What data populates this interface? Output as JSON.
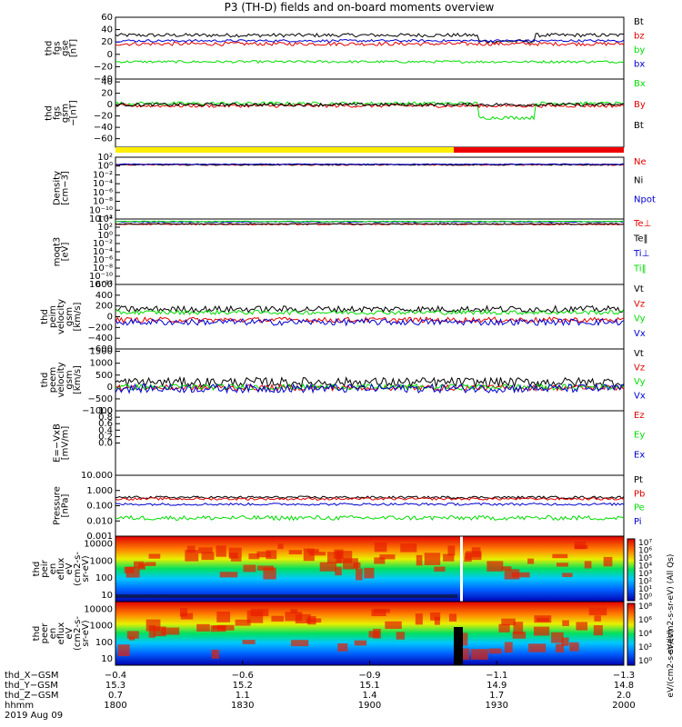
{
  "title": "P3 (TH-D) fields and on-board moments overview",
  "colors": {
    "black": "#000000",
    "red": "#e00000",
    "green": "#00dd00",
    "blue": "#0000d0",
    "yellow": "#ffee00",
    "barred": "#ee0000"
  },
  "chart_data": [
    {
      "type": "line",
      "panel": "fgs_gse",
      "ylabel": [
        "thd",
        "fgs",
        "gse",
        "[nT]"
      ],
      "ylim": [
        -40,
        60
      ],
      "yticks": [
        "60",
        "40",
        "20",
        "0",
        "−20",
        "−40"
      ],
      "yvals": [
        60,
        40,
        20,
        0,
        -20,
        -40
      ],
      "series": [
        {
          "name": "Bt",
          "color": "black",
          "base": 31,
          "noise": 3
        },
        {
          "name": "bz",
          "color": "red",
          "base": 17,
          "noise": 3
        },
        {
          "name": "by",
          "color": "green",
          "base": -12,
          "noise": 2
        },
        {
          "name": "bx",
          "color": "blue",
          "base": 22,
          "noise": 2
        }
      ]
    },
    {
      "type": "line",
      "panel": "fgs_gsm",
      "ylabel": [
        "thd",
        "fgs",
        "gsm",
        "−[nT]"
      ],
      "ylim": [
        -75,
        45
      ],
      "yticks": [
        "40",
        "20",
        "0",
        "−20",
        "−40",
        "−60"
      ],
      "yvals": [
        40,
        20,
        0,
        -20,
        -40,
        -60
      ],
      "series": [
        {
          "name": "Bx",
          "color": "green",
          "base": 2,
          "noise": 3
        },
        {
          "name": "By",
          "color": "red",
          "base": -2,
          "noise": 3
        },
        {
          "name": "Bt",
          "color": "black",
          "base": 0,
          "noise": 3
        }
      ]
    },
    {
      "type": "line",
      "panel": "density",
      "ylabel": [
        "Density",
        "[cm−3]"
      ],
      "log": true,
      "ylim": [
        -12,
        2
      ],
      "yticks": [
        "10²",
        "10⁰",
        "10⁻²",
        "10⁻⁴",
        "10⁻⁶",
        "10⁻⁸",
        "10⁻¹⁰",
        "10⁻¹²"
      ],
      "yvals": [
        2,
        0,
        -2,
        -4,
        -6,
        -8,
        -10,
        -12
      ],
      "series": [
        {
          "name": "Ne",
          "color": "red",
          "base": 0.3,
          "noise": 0.15
        },
        {
          "name": "Ni",
          "color": "black",
          "base": 0.3,
          "noise": 0.15
        },
        {
          "name": "Npot",
          "color": "blue",
          "base": 0.4,
          "noise": 0.1
        }
      ]
    },
    {
      "type": "line",
      "panel": "temperature",
      "ylabel": [
        "moqt3",
        "[eV]"
      ],
      "log": true,
      "ylim": [
        -12,
        4
      ],
      "yticks": [
        "10⁴",
        "10²",
        "10⁰",
        "10⁻²",
        "10⁻⁴",
        "10⁻⁶",
        "10⁻⁸",
        "10⁻¹⁰",
        "10⁻¹²"
      ],
      "yvals": [
        4,
        2,
        0,
        -2,
        -4,
        -6,
        -8,
        -10,
        -12
      ],
      "series": [
        {
          "name": "Te⊥",
          "color": "red",
          "base": 2.7,
          "noise": 0.15
        },
        {
          "name": "Te‖",
          "color": "black",
          "base": 2.8,
          "noise": 0.15
        },
        {
          "name": "Ti⊥",
          "color": "blue",
          "base": 3.3,
          "noise": 0.1
        },
        {
          "name": "Ti‖",
          "color": "green",
          "base": 3.4,
          "noise": 0.1
        }
      ]
    },
    {
      "type": "line",
      "panel": "peim_velocity",
      "ylabel": [
        "thd",
        "peim",
        "velocity",
        "gsm",
        "[km/s]"
      ],
      "ylim": [
        -600,
        600
      ],
      "yticks": [
        "600",
        "400",
        "200",
        "0",
        "−200",
        "−400",
        "−600"
      ],
      "yvals": [
        600,
        400,
        200,
        0,
        -200,
        -400,
        -600
      ],
      "series": [
        {
          "name": "Vt",
          "color": "black",
          "base": 140,
          "noise": 60
        },
        {
          "name": "Vz",
          "color": "red",
          "base": -60,
          "noise": 50
        },
        {
          "name": "Vy",
          "color": "green",
          "base": 80,
          "noise": 40
        },
        {
          "name": "Vx",
          "color": "blue",
          "base": -100,
          "noise": 60
        }
      ]
    },
    {
      "type": "line",
      "panel": "peem_velocity",
      "ylabel": [
        "thd",
        "peem",
        "velocity",
        "gsm",
        "[km/s]"
      ],
      "ylim": [
        -1000,
        1600
      ],
      "yticks": [
        "1500",
        "1000",
        "500",
        "0",
        "−500",
        "−1000"
      ],
      "yvals": [
        1500,
        1000,
        500,
        0,
        -500,
        -1000
      ],
      "series": [
        {
          "name": "Vt",
          "color": "black",
          "base": 200,
          "noise": 200
        },
        {
          "name": "Vz",
          "color": "red",
          "base": -30,
          "noise": 120
        },
        {
          "name": "Vy",
          "color": "green",
          "base": 0,
          "noise": 120
        },
        {
          "name": "Vx",
          "color": "blue",
          "base": -60,
          "noise": 180
        }
      ]
    },
    {
      "type": "line",
      "panel": "efield",
      "ylabel": [
        "E=−VxB",
        "[mV/m]"
      ],
      "ylim": [
        -1,
        1
      ],
      "yticks": [
        "1.0",
        "0.8",
        "0.6",
        "0.4",
        "0.2",
        "0.0"
      ],
      "yvals": [
        1.0,
        0.8,
        0.6,
        0.4,
        0.2,
        0.0
      ],
      "series": [
        {
          "name": "Ez",
          "color": "red"
        },
        {
          "name": "Ey",
          "color": "green"
        },
        {
          "name": "Ex",
          "color": "blue"
        }
      ]
    },
    {
      "type": "line",
      "panel": "pressure",
      "ylabel": [
        "Pressure",
        "[nPa]"
      ],
      "log": true,
      "ylim": [
        -3,
        1
      ],
      "yticks": [
        "10.000",
        "1.000",
        "0.100",
        "0.010",
        "0.001"
      ],
      "yvals": [
        1,
        0,
        -1,
        -2,
        -3
      ],
      "series": [
        {
          "name": "Pt",
          "color": "black",
          "base": -0.45,
          "noise": 0.08
        },
        {
          "name": "Pb",
          "color": "red",
          "base": -0.55,
          "noise": 0.08
        },
        {
          "name": "Pe",
          "color": "green",
          "base": -1.8,
          "noise": 0.15
        },
        {
          "name": "Pi",
          "color": "blue",
          "base": -0.9,
          "noise": 0.08
        }
      ]
    },
    {
      "type": "heatmap",
      "panel": "peir_en_eflux",
      "ylabel": [
        "thd",
        "peir",
        "en",
        "eflux",
        "eV",
        "(cm2-s-",
        "sr-eV)"
      ],
      "yticks": [
        "10000",
        "1000",
        "100",
        "10"
      ]
    },
    {
      "type": "heatmap",
      "panel": "peer_en_eflux",
      "ylabel": [
        "thd",
        "peer",
        "en",
        "eflux",
        "eV",
        "(cm2-s-",
        "sr-eV)"
      ],
      "yticks": [
        "10000",
        "1000",
        "100",
        "10"
      ]
    }
  ],
  "colorbar_1": {
    "ticks": [
      "10⁷",
      "10⁶",
      "10⁵",
      "10⁴",
      "10³",
      "10²",
      "10¹",
      "10⁰"
    ],
    "label": "eV/(cm2-s-sr-eV) (All Qs)"
  },
  "colorbar_2": {
    "ticks": [
      "10⁸",
      "10⁶",
      "10⁴",
      "10²",
      "10⁰"
    ],
    "label": "eV/(cm2-s-sr-eV)"
  },
  "xaxis": {
    "rows": [
      {
        "label": "thd_X−GSM",
        "values": [
          "−0.4",
          "−0.6",
          "−0.9",
          "−1.1",
          "−1.3"
        ]
      },
      {
        "label": "thd_Y−GSM",
        "values": [
          "15.3",
          "15.2",
          "15.1",
          "14.9",
          "14.8"
        ]
      },
      {
        "label": "thd_Z−GSM",
        "values": [
          "0.7",
          "1.1",
          "1.4",
          "1.7",
          "2.0"
        ]
      },
      {
        "label": "hhmm",
        "values": [
          "1800",
          "1830",
          "1900",
          "1930",
          "2000"
        ]
      }
    ],
    "date": "2019 Aug 09"
  },
  "mode_bar": {
    "segments": [
      {
        "from": "1800",
        "to": "1922",
        "mode": "yellow"
      },
      {
        "from": "1922",
        "to": "2000",
        "mode": "red"
      }
    ]
  }
}
